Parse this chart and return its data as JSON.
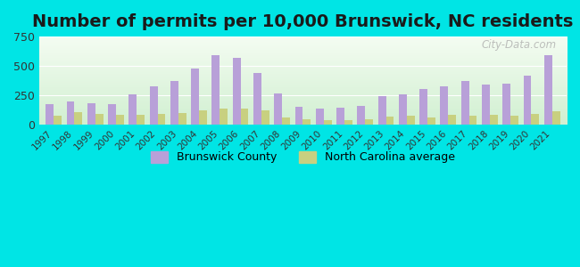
{
  "title": "Number of permits per 10,000 Brunswick, NC residents",
  "years": [
    1997,
    1998,
    1999,
    2000,
    2001,
    2002,
    2003,
    2004,
    2005,
    2006,
    2007,
    2008,
    2009,
    2010,
    2011,
    2012,
    2013,
    2014,
    2015,
    2016,
    2017,
    2018,
    2019,
    2020,
    2021
  ],
  "brunswick": [
    175,
    195,
    185,
    175,
    260,
    325,
    375,
    480,
    590,
    570,
    440,
    265,
    155,
    140,
    145,
    160,
    245,
    260,
    305,
    330,
    375,
    345,
    350,
    420,
    590
  ],
  "nc_avg": [
    80,
    105,
    90,
    85,
    85,
    95,
    100,
    120,
    140,
    135,
    120,
    60,
    45,
    40,
    40,
    45,
    70,
    75,
    65,
    85,
    80,
    85,
    80,
    90,
    115
  ],
  "brunswick_color": "#b8a0d8",
  "nc_avg_color": "#c8d080",
  "bg_outer": "#00e5e5",
  "ylim": [
    0,
    750
  ],
  "yticks": [
    0,
    250,
    500,
    750
  ],
  "title_fontsize": 14,
  "watermark": "City-Data.com",
  "legend_brunswick": "Brunswick County",
  "legend_nc": "North Carolina average"
}
